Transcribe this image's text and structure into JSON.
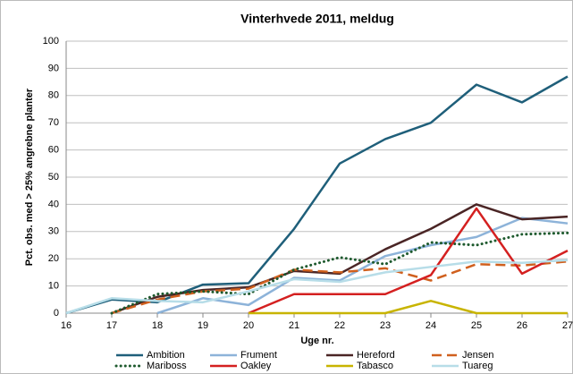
{
  "chart_data": {
    "type": "line",
    "title": "Vinterhvede 2011, meldug",
    "x_label": "Uge nr.",
    "y_label": "Pct. obs. med > 25% angrebne planter",
    "x": [
      16,
      17,
      18,
      19,
      20,
      21,
      22,
      23,
      24,
      25,
      26,
      27
    ],
    "xlim": [
      16,
      27
    ],
    "xticks": [
      16,
      17,
      18,
      19,
      20,
      21,
      22,
      23,
      24,
      25,
      26,
      27
    ],
    "ylim": [
      0,
      100
    ],
    "yticks": [
      0,
      10,
      20,
      30,
      40,
      50,
      60,
      70,
      80,
      90,
      100
    ],
    "grid": true,
    "legend": "bottom",
    "series": [
      {
        "name": "Ambition",
        "color": "#1f5f7a",
        "dash": "solid",
        "values": [
          0,
          5,
          4,
          10.5,
          11,
          31,
          55,
          64,
          70,
          84,
          77.5,
          87
        ]
      },
      {
        "name": "Frument",
        "color": "#8db3d9",
        "dash": "solid",
        "values": [
          null,
          null,
          0,
          5.5,
          3,
          13,
          12,
          21,
          25,
          28,
          35,
          33
        ]
      },
      {
        "name": "Hereford",
        "color": "#4a2525",
        "dash": "solid",
        "values": [
          null,
          0,
          6,
          8.5,
          9.5,
          15.5,
          14.5,
          23.5,
          31,
          40,
          34.5,
          35.5
        ]
      },
      {
        "name": "Jensen",
        "color": "#d0601e",
        "dash": "dashed",
        "values": [
          null,
          0,
          5,
          8,
          9,
          16,
          15,
          16.5,
          12,
          18,
          17.5,
          19
        ]
      },
      {
        "name": "Mariboss",
        "color": "#1e5a2e",
        "dash": "dotted",
        "values": [
          null,
          0,
          7,
          8,
          7,
          16,
          20.5,
          18,
          26,
          25,
          29,
          29.5
        ]
      },
      {
        "name": "Oakley",
        "color": "#d42020",
        "dash": "solid",
        "values": [
          null,
          null,
          null,
          null,
          0,
          7,
          7,
          7,
          14,
          38.5,
          14.5,
          23
        ]
      },
      {
        "name": "Tabasco",
        "color": "#c8b400",
        "dash": "solid",
        "values": [
          null,
          null,
          null,
          null,
          0,
          0,
          0,
          0,
          4.5,
          0,
          0,
          0
        ]
      },
      {
        "name": "Tuareg",
        "color": "#b7dde8",
        "dash": "solid",
        "values": [
          0,
          5.5,
          4.5,
          4,
          8,
          12.5,
          11.5,
          15,
          17,
          19,
          18.5,
          19.5
        ]
      }
    ]
  }
}
